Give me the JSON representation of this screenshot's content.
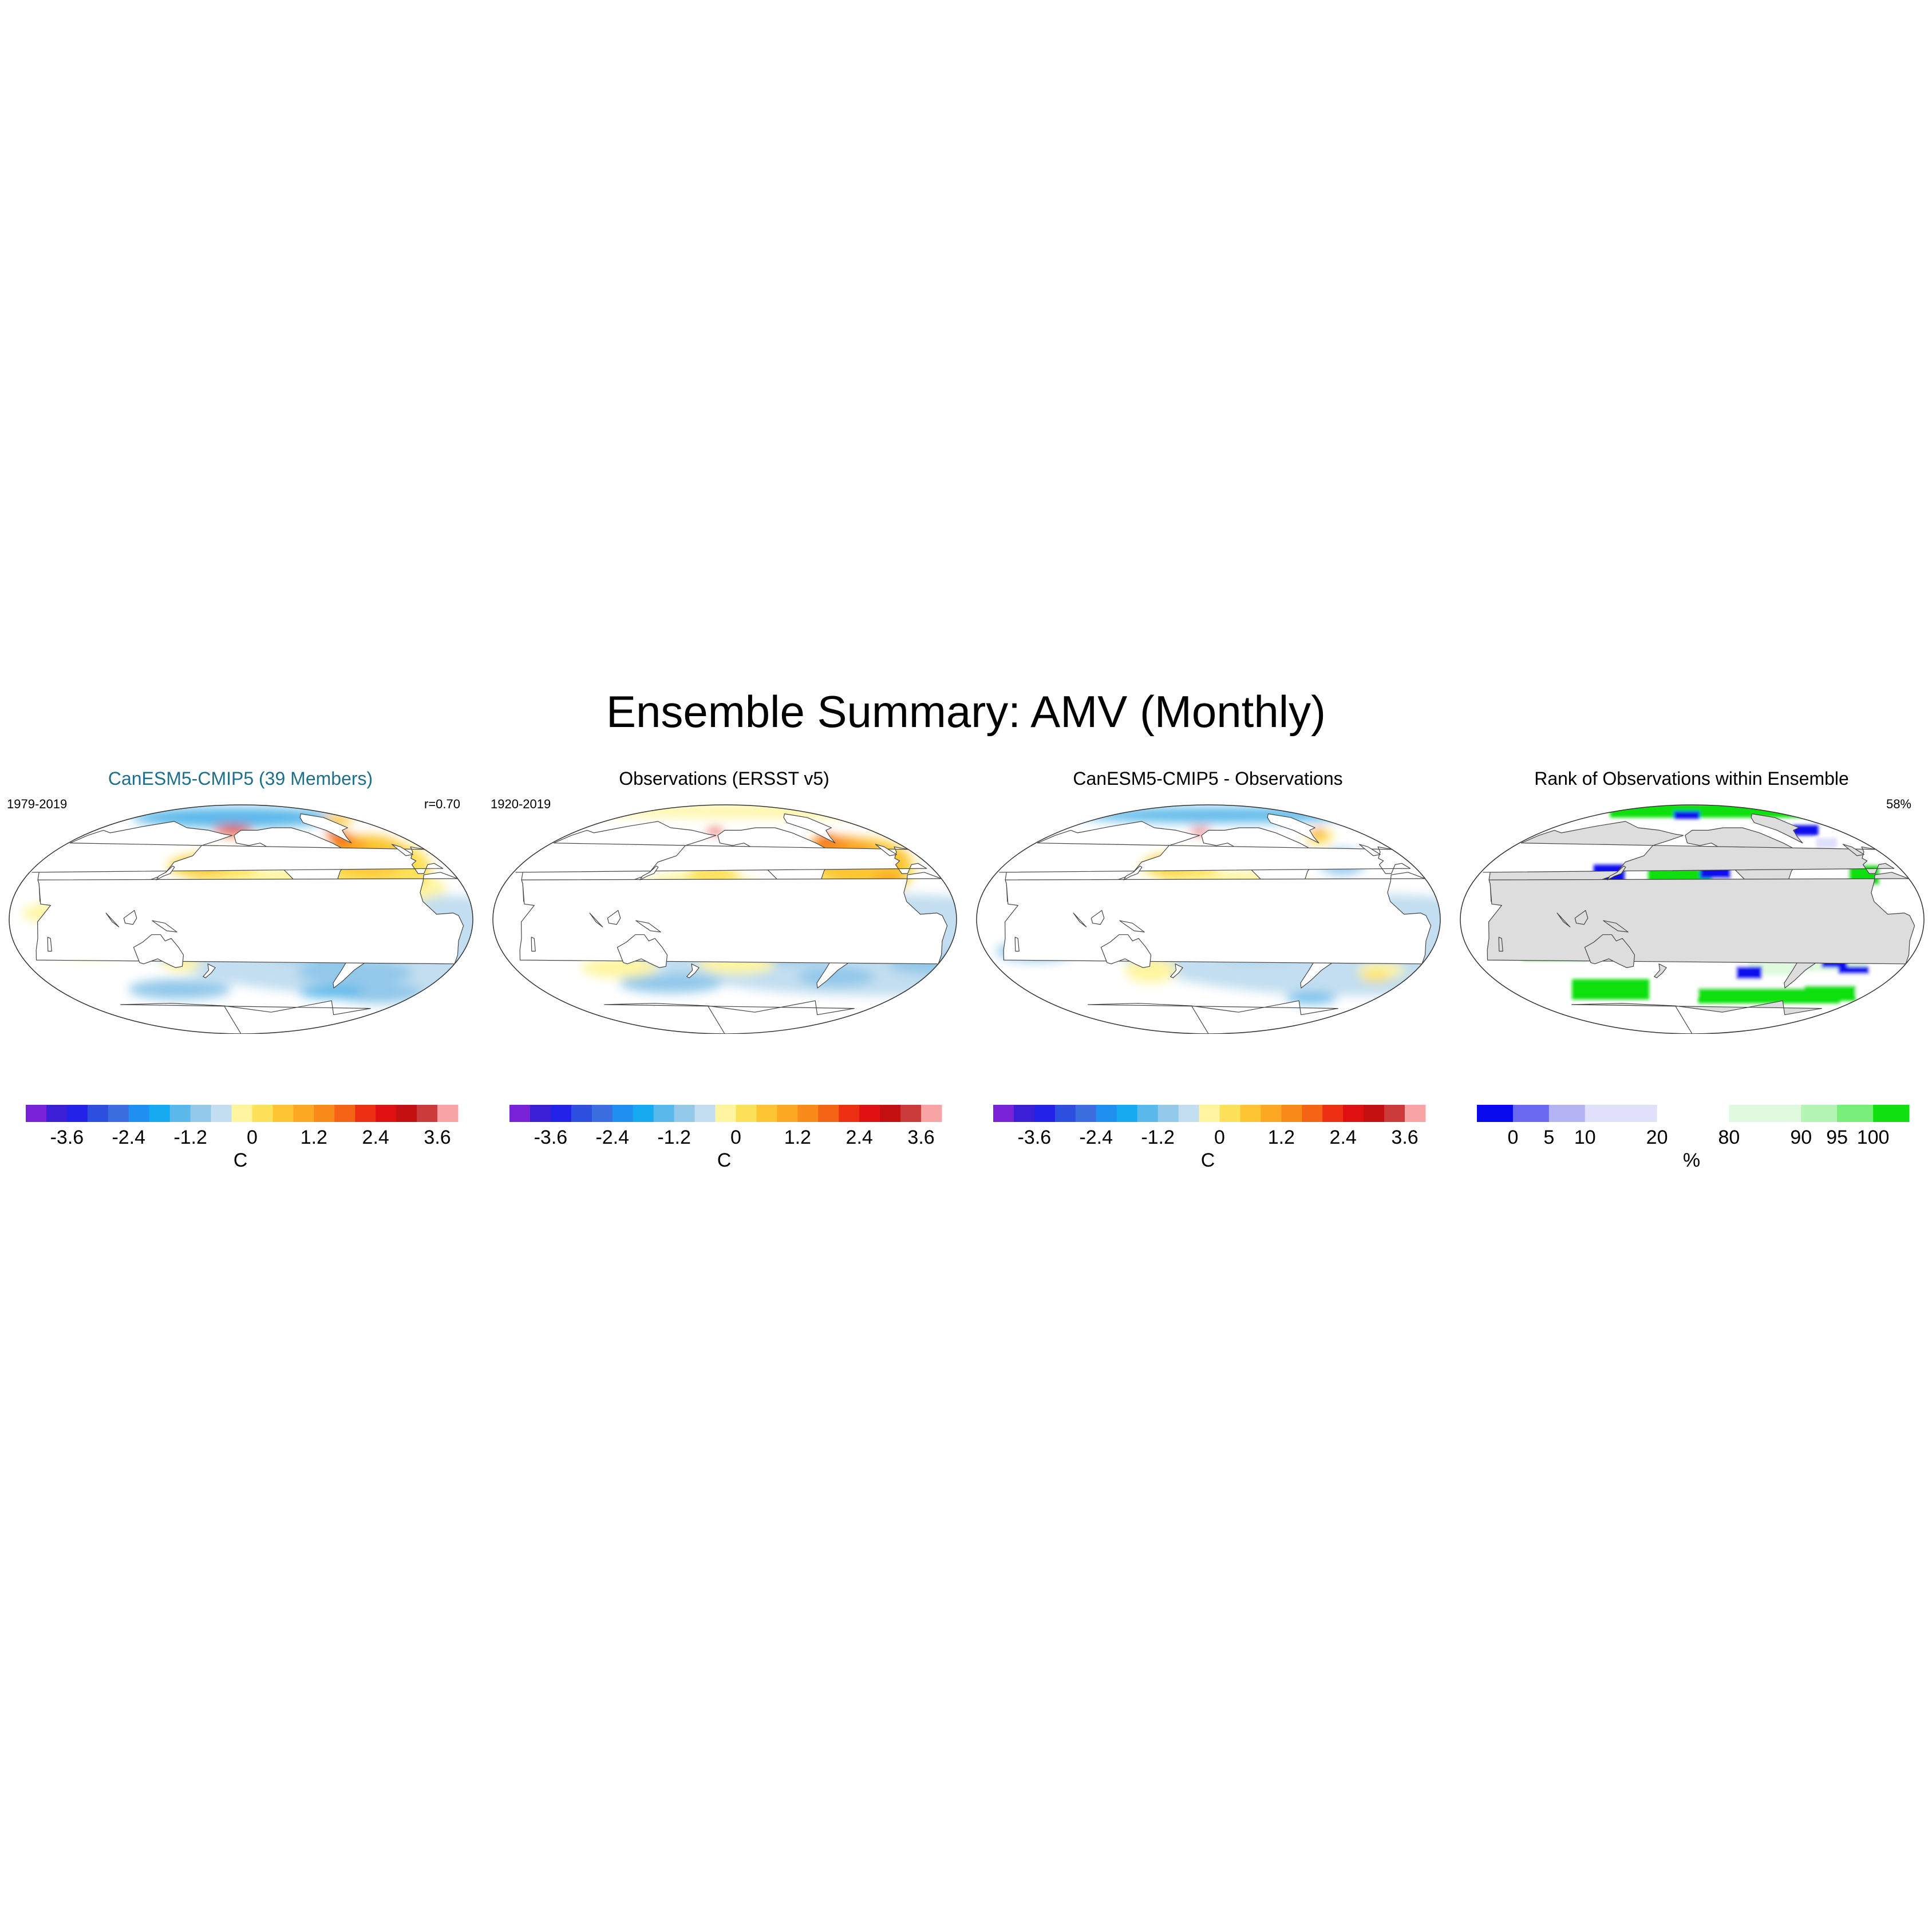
{
  "figure": {
    "title": "Ensemble Summary: AMV (Monthly)"
  },
  "panels": [
    {
      "title": "CanESM5-CMIP5 (39 Members)",
      "left_note": "1979-2019",
      "right_note": "r=0.70",
      "field_ref": "model",
      "colorbar_ref": "temperature"
    },
    {
      "title": "Observations (ERSST v5)",
      "left_note": "1920-2019",
      "right_note": "",
      "field_ref": "obs",
      "colorbar_ref": "temperature"
    },
    {
      "title": "CanESM5-CMIP5 - Observations",
      "left_note": "",
      "right_note": "",
      "field_ref": "diff",
      "colorbar_ref": "temperature"
    },
    {
      "title": "Rank of Observations within Ensemble",
      "left_note": "",
      "right_note": "58%",
      "field_ref": "rank",
      "colorbar_ref": "rank"
    }
  ],
  "colorbars": {
    "temperature": {
      "unit": "C",
      "tick_labels": [
        "-3.6",
        "-2.4",
        "-1.2",
        "0",
        "1.2",
        "2.4",
        "3.6"
      ],
      "tick_boundaries": [
        2,
        5,
        8,
        11,
        14,
        17,
        20
      ],
      "colors": [
        "#7a22d8",
        "#3b1fd6",
        "#2222e8",
        "#2d4fe0",
        "#3b6fdf",
        "#1f8ff0",
        "#16abf0",
        "#5ab8ea",
        "#92c8ea",
        "#c2def0",
        "#fff5a0",
        "#fee15a",
        "#fdc532",
        "#fca823",
        "#f88a1a",
        "#f46316",
        "#ec2f12",
        "#df1010",
        "#c41010",
        "#cc3b3b",
        "#f9a4a4"
      ]
    },
    "rank": {
      "unit": "%",
      "tick_labels": [
        "0",
        "5",
        "10",
        "20",
        "80",
        "90",
        "95",
        "100"
      ],
      "tick_boundaries": [
        1,
        2,
        3,
        5,
        7,
        9,
        10,
        11
      ],
      "colors": [
        "#0a0aee",
        "#6a6af0",
        "#b4b4f4",
        "#e0e0fa",
        "#e0e0fa",
        "#ffffff",
        "#ffffff",
        "#e0fae0",
        "#e0fae0",
        "#b4f4b4",
        "#7aee7a",
        "#10e010"
      ]
    }
  },
  "fields": {
    "model": [
      {
        "c": "#c2def0",
        "lon": -40,
        "lat": -20,
        "rx": 190,
        "ry": 40
      },
      {
        "c": "#92c8ea",
        "lon": -140,
        "lat": -8,
        "rx": 45,
        "ry": 16
      },
      {
        "c": "#92c8ea",
        "lon": -100,
        "lat": -22,
        "rx": 40,
        "ry": 12
      },
      {
        "c": "#92c8ea",
        "lon": -60,
        "lat": -42,
        "rx": 45,
        "ry": 10
      },
      {
        "c": "#92c8ea",
        "lon": 140,
        "lat": -55,
        "rx": 40,
        "ry": 8
      },
      {
        "c": "#92c8ea",
        "lon": -20,
        "lat": -58,
        "rx": 35,
        "ry": 8
      },
      {
        "c": "#5ab8ea",
        "lon": -70,
        "lat": -57,
        "rx": 25,
        "ry": 5
      },
      {
        "c": "#5ab8ea",
        "lon": -170,
        "lat": 80,
        "rx": 80,
        "ry": 8
      },
      {
        "c": "#fff5a0",
        "lon": 80,
        "lat": -20,
        "rx": 35,
        "ry": 10
      },
      {
        "c": "#fff5a0",
        "lon": 60,
        "lat": 5,
        "rx": 30,
        "ry": 8
      },
      {
        "c": "#fff5a0",
        "lon": 150,
        "lat": -35,
        "rx": 15,
        "ry": 6
      },
      {
        "c": "#fff5a0",
        "lon": -130,
        "lat": 30,
        "rx": 70,
        "ry": 10
      },
      {
        "c": "#fff5a0",
        "lon": -25,
        "lat": 25,
        "rx": 30,
        "ry": 10
      },
      {
        "c": "#fee15a",
        "lon": 175,
        "lat": 42,
        "rx": 35,
        "ry": 10
      },
      {
        "c": "#fdc532",
        "lon": 165,
        "lat": 42,
        "rx": 20,
        "ry": 7
      },
      {
        "c": "#fee15a",
        "lon": -40,
        "lat": 40,
        "rx": 40,
        "ry": 22
      },
      {
        "c": "#fdc532",
        "lon": -40,
        "lat": 50,
        "rx": 30,
        "ry": 16
      },
      {
        "c": "#fca823",
        "lon": -50,
        "lat": 58,
        "rx": 15,
        "ry": 8
      },
      {
        "c": "#f46316",
        "lon": -50,
        "lat": 63,
        "rx": 8,
        "ry": 5
      },
      {
        "c": "#df1010",
        "lon": -52,
        "lat": 68,
        "rx": 4,
        "ry": 3
      },
      {
        "c": "#fdc532",
        "lon": -10,
        "lat": 78,
        "rx": 12,
        "ry": 4
      },
      {
        "c": "#f46316",
        "lon": -170,
        "lat": 70,
        "rx": 15,
        "ry": 4
      },
      {
        "c": "#df1010",
        "lon": -168,
        "lat": 72,
        "rx": 8,
        "ry": 2
      }
    ],
    "obs": [
      {
        "c": "#c2def0",
        "lon": -40,
        "lat": -20,
        "rx": 190,
        "ry": 40
      },
      {
        "c": "#92c8ea",
        "lon": -150,
        "lat": 0,
        "rx": 30,
        "ry": 8
      },
      {
        "c": "#5ab8ea",
        "lon": -140,
        "lat": -2,
        "rx": 12,
        "ry": 3
      },
      {
        "c": "#92c8ea",
        "lon": -110,
        "lat": -25,
        "rx": 40,
        "ry": 10
      },
      {
        "c": "#92c8ea",
        "lon": 10,
        "lat": -35,
        "rx": 30,
        "ry": 8
      },
      {
        "c": "#92c8ea",
        "lon": 150,
        "lat": -50,
        "rx": 40,
        "ry": 8
      },
      {
        "c": "#92c8ea",
        "lon": -60,
        "lat": -45,
        "rx": 30,
        "ry": 8
      },
      {
        "c": "#fff5a0",
        "lon": -180,
        "lat": 20,
        "rx": 50,
        "ry": 18
      },
      {
        "c": "#fff5a0",
        "lon": -150,
        "lat": -35,
        "rx": 30,
        "ry": 8
      },
      {
        "c": "#fff5a0",
        "lon": 110,
        "lat": -38,
        "rx": 30,
        "ry": 8
      },
      {
        "c": "#fff5a0",
        "lon": -10,
        "lat": 85,
        "rx": 170,
        "ry": 5
      },
      {
        "c": "#fee15a",
        "lon": -170,
        "lat": 35,
        "rx": 20,
        "ry": 8
      },
      {
        "c": "#fee15a",
        "lon": -40,
        "lat": 40,
        "rx": 40,
        "ry": 24
      },
      {
        "c": "#fdc532",
        "lon": -35,
        "lat": 45,
        "rx": 35,
        "ry": 18
      },
      {
        "c": "#fca823",
        "lon": -45,
        "lat": 55,
        "rx": 25,
        "ry": 10
      },
      {
        "c": "#f88a1a",
        "lon": -50,
        "lat": 60,
        "rx": 15,
        "ry": 6
      },
      {
        "c": "#f46316",
        "lon": -50,
        "lat": 63,
        "rx": 6,
        "ry": 4
      },
      {
        "c": "#fca823",
        "lon": -25,
        "lat": 30,
        "rx": 12,
        "ry": 6
      },
      {
        "c": "#df1010",
        "lon": -172,
        "lat": 70,
        "rx": 6,
        "ry": 2
      }
    ],
    "diff": [
      {
        "c": "#c2def0",
        "lon": -40,
        "lat": -20,
        "rx": 190,
        "ry": 40
      },
      {
        "c": "#92c8ea",
        "lon": -120,
        "lat": -18,
        "rx": 45,
        "ry": 14
      },
      {
        "c": "#5ab8ea",
        "lon": -110,
        "lat": -20,
        "rx": 20,
        "ry": 6
      },
      {
        "c": "#92c8ea",
        "lon": 60,
        "lat": -25,
        "rx": 30,
        "ry": 8
      },
      {
        "c": "#5ab8ea",
        "lon": -140,
        "lat": 82,
        "rx": 110,
        "ry": 6
      },
      {
        "c": "#5ab8ea",
        "lon": -50,
        "lat": -62,
        "rx": 20,
        "ry": 4
      },
      {
        "c": "#fff5a0",
        "lon": 80,
        "lat": 0,
        "rx": 20,
        "ry": 15
      },
      {
        "c": "#fff5a0",
        "lon": -10,
        "lat": -15,
        "rx": 18,
        "ry": 12
      },
      {
        "c": "#fff5a0",
        "lon": -10,
        "lat": -40,
        "rx": 18,
        "ry": 6
      },
      {
        "c": "#fff5a0",
        "lon": -140,
        "lat": 28,
        "rx": 60,
        "ry": 10
      },
      {
        "c": "#fff5a0",
        "lon": 150,
        "lat": -40,
        "rx": 20,
        "ry": 10
      },
      {
        "c": "#fee15a",
        "lon": 175,
        "lat": 42,
        "rx": 30,
        "ry": 10
      },
      {
        "c": "#fdc532",
        "lon": 165,
        "lat": 44,
        "rx": 15,
        "ry": 6
      },
      {
        "c": "#fee15a",
        "lon": -10,
        "lat": -45,
        "rx": 12,
        "ry": 4
      },
      {
        "c": "#fee15a",
        "lon": -35,
        "lat": 65,
        "rx": 10,
        "ry": 6
      },
      {
        "c": "#f46316",
        "lon": -30,
        "lat": 68,
        "rx": 4,
        "ry": 3
      },
      {
        "c": "#df1010",
        "lon": -170,
        "lat": 70,
        "rx": 8,
        "ry": 2
      },
      {
        "c": "#92c8ea",
        "lon": -40,
        "lat": 45,
        "rx": 18,
        "ry": 10
      }
    ],
    "rank": [
      {
        "c": "#ffffff",
        "lon": 0,
        "lat": -5,
        "rx": 180,
        "ry": 55
      },
      {
        "c": "#10e010",
        "lon": -170,
        "lat": 35,
        "rx": 25,
        "ry": 10
      },
      {
        "c": "#10e010",
        "lon": -110,
        "lat": 0,
        "rx": 35,
        "ry": 10
      },
      {
        "c": "#10e010",
        "lon": -120,
        "lat": -12,
        "rx": 25,
        "ry": 8
      },
      {
        "c": "#10e010",
        "lon": 90,
        "lat": -22,
        "rx": 25,
        "ry": 10
      },
      {
        "c": "#10e010",
        "lon": 120,
        "lat": -55,
        "rx": 30,
        "ry": 8
      },
      {
        "c": "#10e010",
        "lon": -80,
        "lat": -60,
        "rx": 55,
        "ry": 6
      },
      {
        "c": "#10e010",
        "lon": -20,
        "lat": -58,
        "rx": 20,
        "ry": 6
      },
      {
        "c": "#10e010",
        "lon": -15,
        "lat": 35,
        "rx": 12,
        "ry": 8
      },
      {
        "c": "#10e010",
        "lon": -80,
        "lat": 85,
        "rx": 90,
        "ry": 5
      },
      {
        "c": "#10e010",
        "lon": -150,
        "lat": 88,
        "rx": 40,
        "ry": 3
      },
      {
        "c": "#e0fae0",
        "lon": -90,
        "lat": -38,
        "rx": 20,
        "ry": 6
      },
      {
        "c": "#e0fae0",
        "lon": -40,
        "lat": -35,
        "rx": 25,
        "ry": 6
      },
      {
        "c": "#b4f4b4",
        "lon": 100,
        "lat": -10,
        "rx": 12,
        "ry": 6
      },
      {
        "c": "#0a0aee",
        "lon": 130,
        "lat": 35,
        "rx": 12,
        "ry": 8
      },
      {
        "c": "#0a0aee",
        "lon": 60,
        "lat": 10,
        "rx": 4,
        "ry": 8
      },
      {
        "c": "#0a0aee",
        "lon": -140,
        "lat": 38,
        "rx": 12,
        "ry": 6
      },
      {
        "c": "#0a0aee",
        "lon": -70,
        "lat": 8,
        "rx": 25,
        "ry": 4
      },
      {
        "c": "#0a0aee",
        "lon": -110,
        "lat": -42,
        "rx": 10,
        "ry": 5
      },
      {
        "c": "#0a0aee",
        "lon": -40,
        "lat": -35,
        "rx": 10,
        "ry": 3
      },
      {
        "c": "#0a0aee",
        "lon": -20,
        "lat": -40,
        "rx": 12,
        "ry": 3
      },
      {
        "c": "#0a0aee",
        "lon": -5,
        "lat": -22,
        "rx": 10,
        "ry": 5
      },
      {
        "c": "#0a0aee",
        "lon": -170,
        "lat": 82,
        "rx": 10,
        "ry": 3
      },
      {
        "c": "#0a0aee",
        "lon": -20,
        "lat": 70,
        "rx": 10,
        "ry": 4
      },
      {
        "c": "#e0e0fa",
        "lon": -90,
        "lat": 45,
        "rx": 8,
        "ry": 4
      },
      {
        "c": "#e0e0fa",
        "lon": -20,
        "lat": 60,
        "rx": 8,
        "ry": 4
      }
    ]
  },
  "land_color": "#ffffff",
  "rank_land_color": "#dddddd"
}
